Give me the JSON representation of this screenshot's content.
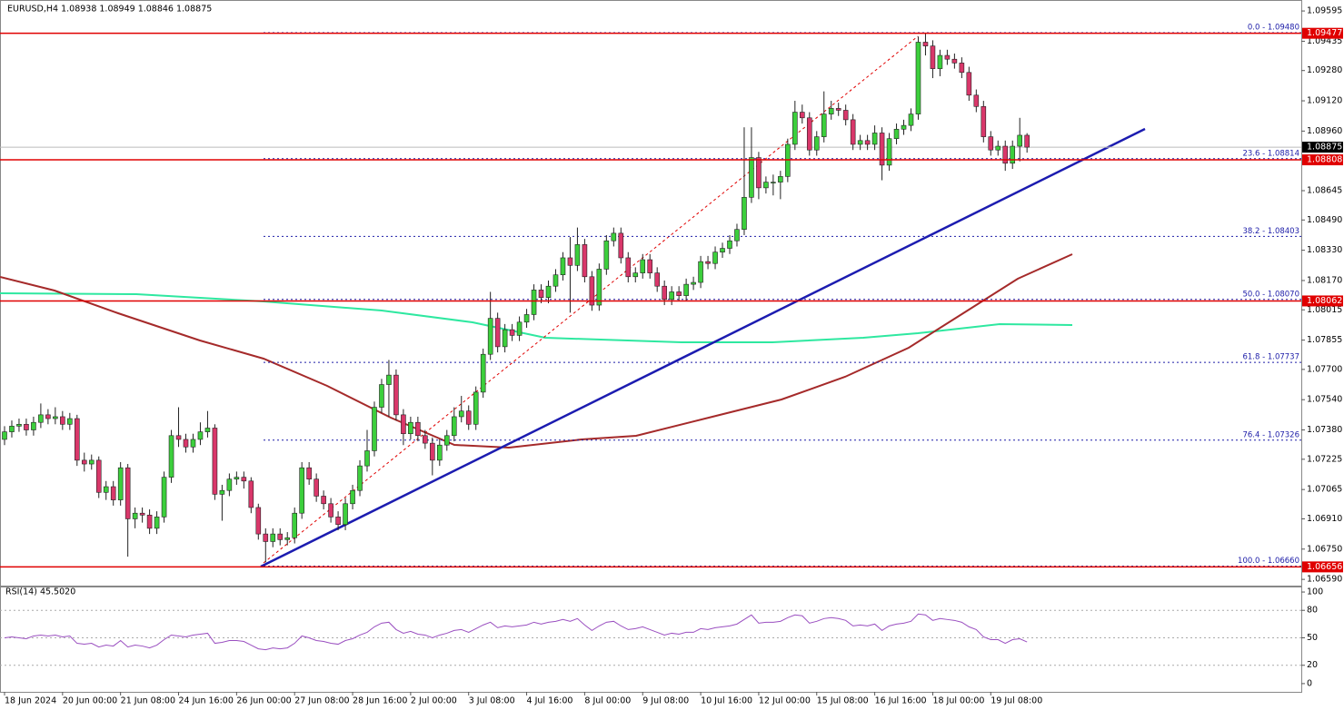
{
  "chart_data": {
    "type": "candlestick",
    "title": "EURUSD,H4  1.08938 1.08949 1.08846 1.08875",
    "up_color": "#3ccf3c",
    "down_color": "#d9376a",
    "ylim": [
      1.06557,
      1.09653
    ],
    "yticks": [
      1.09595,
      1.09435,
      {
        "value": 1.0928,
        "label": "1.09280"
      },
      {
        "value": 1.0912,
        "label": "1.09120"
      },
      {
        "value": 1.0896,
        "label": "1.08960"
      },
      1.08645,
      {
        "value": 1.0849,
        "label": "1.08490"
      },
      {
        "value": 1.0833,
        "label": "1.08330"
      },
      {
        "value": 1.0817,
        "label": "1.08170"
      },
      1.08015,
      1.07855,
      {
        "value": 1.077,
        "label": "1.07700"
      },
      {
        "value": 1.0754,
        "label": "1.07540"
      },
      {
        "value": 1.0738,
        "label": "1.07380"
      },
      1.07225,
      1.07065,
      {
        "value": 1.0691,
        "label": "1.06910"
      },
      {
        "value": 1.0675,
        "label": "1.06750"
      },
      {
        "value": 1.0659,
        "label": "1.06590"
      }
    ],
    "grid": false,
    "levels": [
      1.09477,
      1.08808,
      1.08062,
      1.06656
    ],
    "level_color": "#e00000",
    "fib_color": "#1c1ca8",
    "fib_levels": [
      {
        "label": "0.0 - 1.09480",
        "value": 1.0948
      },
      {
        "label": "23.6 - 1.08814",
        "value": 1.08814
      },
      {
        "label": "38.2 - 1.08403",
        "value": 1.08403
      },
      {
        "label": "50.0 - 1.08070",
        "value": 1.0807
      },
      {
        "label": "61.8 - 1.07737",
        "value": 1.07737
      },
      {
        "label": "76.4 - 1.07326",
        "value": 1.07326
      },
      {
        "label": "100.0 - 1.06660",
        "value": 1.0666
      }
    ],
    "categories": [
      "18 Jun 2024",
      null,
      null,
      null,
      null,
      null,
      null,
      null,
      "20 Jun 00:00",
      null,
      null,
      null,
      null,
      null,
      null,
      null,
      "21 Jun 08:00",
      null,
      null,
      null,
      null,
      null,
      null,
      null,
      "24 Jun 16:00",
      null,
      null,
      null,
      null,
      null,
      null,
      null,
      "26 Jun 00:00",
      null,
      null,
      null,
      null,
      null,
      null,
      null,
      "27 Jun 08:00",
      null,
      null,
      null,
      null,
      null,
      null,
      null,
      "28 Jun 16:00",
      null,
      null,
      null,
      null,
      null,
      null,
      null,
      "2 Jul 00:00",
      null,
      null,
      null,
      null,
      null,
      null,
      null,
      "3 Jul 08:00",
      null,
      null,
      null,
      null,
      null,
      null,
      null,
      "4 Jul 16:00",
      null,
      null,
      null,
      null,
      null,
      null,
      null,
      "8 Jul 00:00",
      null,
      null,
      null,
      null,
      null,
      null,
      null,
      "9 Jul 08:00",
      null,
      null,
      null,
      null,
      null,
      null,
      null,
      "10 Jul 16:00",
      null,
      null,
      null,
      null,
      null,
      null,
      null,
      "12 Jul 00:00",
      null,
      null,
      null,
      null,
      null,
      null,
      null,
      "15 Jul 08:00",
      null,
      null,
      null,
      null,
      null,
      null,
      null,
      "16 Jul 16:00",
      null,
      null,
      null,
      null,
      null,
      null,
      null,
      "18 Jul 00:00",
      null,
      null,
      null,
      null,
      null,
      null,
      null,
      "19 Jul 08:00",
      null,
      null,
      null,
      null,
      null
    ],
    "candles": [
      [
        1.0733,
        1.074,
        1.073,
        1.0737
      ],
      [
        1.0737,
        1.0743,
        1.0734,
        1.074
      ],
      [
        1.074,
        1.0744,
        1.0737,
        1.0741
      ],
      [
        1.0741,
        1.0744,
        1.0735,
        1.0738
      ],
      [
        1.0738,
        1.0745,
        1.0735,
        1.0742
      ],
      [
        1.0742,
        1.0752,
        1.0739,
        1.0746
      ],
      [
        1.0746,
        1.0749,
        1.0741,
        1.0744
      ],
      [
        1.0744,
        1.075,
        1.0741,
        1.0745
      ],
      [
        1.0745,
        1.0748,
        1.0738,
        1.0741
      ],
      [
        1.0741,
        1.0747,
        1.0738,
        1.0744
      ],
      [
        1.0744,
        1.0746,
        1.0719,
        1.0722
      ],
      [
        1.0722,
        1.0726,
        1.0716,
        1.072
      ],
      [
        1.072,
        1.0725,
        1.0717,
        1.0722
      ],
      [
        1.0722,
        1.0724,
        1.0702,
        1.0705
      ],
      [
        1.0705,
        1.0711,
        1.0701,
        1.0708
      ],
      [
        1.0708,
        1.0711,
        1.0698,
        1.0701
      ],
      [
        1.0701,
        1.0721,
        1.0698,
        1.0718
      ],
      [
        1.0718,
        1.072,
        1.0671,
        1.0691
      ],
      [
        1.0691,
        1.0697,
        1.0686,
        1.0694
      ],
      [
        1.0694,
        1.0697,
        1.0689,
        1.0693
      ],
      [
        1.0693,
        1.0696,
        1.0683,
        1.0686
      ],
      [
        1.0686,
        1.0695,
        1.0683,
        1.0692
      ],
      [
        1.0692,
        1.0716,
        1.0689,
        1.0713
      ],
      [
        1.0713,
        1.0738,
        1.071,
        1.0735
      ],
      [
        1.0735,
        1.075,
        1.0729,
        1.0733
      ],
      [
        1.0733,
        1.0736,
        1.0726,
        1.0729
      ],
      [
        1.0729,
        1.0736,
        1.0726,
        1.0733
      ],
      [
        1.0733,
        1.0742,
        1.073,
        1.0737
      ],
      [
        1.0737,
        1.0748,
        1.0734,
        1.0739
      ],
      [
        1.0739,
        1.0741,
        1.0701,
        1.0704
      ],
      [
        1.0704,
        1.0709,
        1.069,
        1.0706
      ],
      [
        1.0706,
        1.0715,
        1.0703,
        1.0712
      ],
      [
        1.0712,
        1.0716,
        1.0709,
        1.0713
      ],
      [
        1.0713,
        1.0716,
        1.0707,
        1.0711
      ],
      [
        1.0711,
        1.0713,
        1.0694,
        1.0697
      ],
      [
        1.0697,
        1.0699,
        1.068,
        1.0683
      ],
      [
        1.0683,
        1.0686,
        1.0668,
        1.0679
      ],
      [
        1.0679,
        1.0686,
        1.0676,
        1.0683
      ],
      [
        1.0683,
        1.0686,
        1.0677,
        1.068
      ],
      [
        1.068,
        1.0684,
        1.0677,
        1.0681
      ],
      [
        1.0681,
        1.0697,
        1.0678,
        1.0694
      ],
      [
        1.0694,
        1.0721,
        1.0691,
        1.0718
      ],
      [
        1.0718,
        1.0721,
        1.0709,
        1.0712
      ],
      [
        1.0712,
        1.0715,
        1.07,
        1.0703
      ],
      [
        1.0703,
        1.0706,
        1.0696,
        1.0699
      ],
      [
        1.0699,
        1.0702,
        1.0689,
        1.0692
      ],
      [
        1.0692,
        1.0695,
        1.0685,
        1.0688
      ],
      [
        1.0688,
        1.0702,
        1.0685,
        1.0699
      ],
      [
        1.0699,
        1.0709,
        1.0696,
        1.0706
      ],
      [
        1.0706,
        1.0722,
        1.0703,
        1.0719
      ],
      [
        1.0719,
        1.0738,
        1.0716,
        1.0727
      ],
      [
        1.0727,
        1.0753,
        1.0724,
        1.075
      ],
      [
        1.075,
        1.0765,
        1.0747,
        1.0762
      ],
      [
        1.0762,
        1.0775,
        1.0745,
        1.0767
      ],
      [
        1.0767,
        1.077,
        1.0743,
        1.0746
      ],
      [
        1.0746,
        1.0749,
        1.073,
        1.0736
      ],
      [
        1.0736,
        1.0745,
        1.0733,
        1.0742
      ],
      [
        1.0742,
        1.0745,
        1.0732,
        1.0735
      ],
      [
        1.0735,
        1.0738,
        1.0728,
        1.0731
      ],
      [
        1.0731,
        1.0734,
        1.0714,
        1.0722
      ],
      [
        1.0722,
        1.0733,
        1.0719,
        1.073
      ],
      [
        1.073,
        1.0738,
        1.0727,
        1.0735
      ],
      [
        1.0735,
        1.075,
        1.0732,
        1.0745
      ],
      [
        1.0745,
        1.0756,
        1.0742,
        1.0748
      ],
      [
        1.0748,
        1.0751,
        1.0738,
        1.0741
      ],
      [
        1.0741,
        1.0761,
        1.0738,
        1.0758
      ],
      [
        1.0758,
        1.0781,
        1.0755,
        1.0778
      ],
      [
        1.0778,
        1.0811,
        1.0775,
        1.0797
      ],
      [
        1.0797,
        1.08,
        1.0779,
        1.0782
      ],
      [
        1.0782,
        1.0794,
        1.0779,
        1.0791
      ],
      [
        1.0791,
        1.0794,
        1.0785,
        1.0788
      ],
      [
        1.0788,
        1.0798,
        1.0785,
        1.0795
      ],
      [
        1.0795,
        1.0802,
        1.0792,
        1.0799
      ],
      [
        1.0799,
        1.0815,
        1.0796,
        1.0812
      ],
      [
        1.0812,
        1.0815,
        1.0805,
        1.0808
      ],
      [
        1.0808,
        1.0817,
        1.0805,
        1.0814
      ],
      [
        1.0814,
        1.0823,
        1.0811,
        1.082
      ],
      [
        1.082,
        1.0832,
        1.0817,
        1.0829
      ],
      [
        1.0829,
        1.084,
        1.08,
        1.0825
      ],
      [
        1.0825,
        1.0845,
        1.0822,
        1.0836
      ],
      [
        1.0836,
        1.0839,
        1.0816,
        1.0819
      ],
      [
        1.0819,
        1.0822,
        1.0801,
        1.0804
      ],
      [
        1.0804,
        1.0826,
        1.0801,
        1.0823
      ],
      [
        1.0823,
        1.0841,
        1.082,
        1.0838
      ],
      [
        1.0838,
        1.0845,
        1.0835,
        1.0842
      ],
      [
        1.0842,
        1.0845,
        1.0826,
        1.0829
      ],
      [
        1.0829,
        1.0832,
        1.0816,
        1.0819
      ],
      [
        1.0819,
        1.0824,
        1.0816,
        1.0821
      ],
      [
        1.0821,
        1.0831,
        1.0818,
        1.0828
      ],
      [
        1.0828,
        1.0831,
        1.0818,
        1.0821
      ],
      [
        1.0821,
        1.0824,
        1.0811,
        1.0814
      ],
      [
        1.0814,
        1.0817,
        1.0804,
        1.0807
      ],
      [
        1.0807,
        1.0814,
        1.0804,
        1.0811
      ],
      [
        1.0811,
        1.0814,
        1.0806,
        1.0809
      ],
      [
        1.0809,
        1.0818,
        1.0806,
        1.0815
      ],
      [
        1.0815,
        1.0819,
        1.0812,
        1.0816
      ],
      [
        1.0816,
        1.083,
        1.0813,
        1.0827
      ],
      [
        1.0827,
        1.083,
        1.0823,
        1.0826
      ],
      [
        1.0826,
        1.0835,
        1.0823,
        1.0832
      ],
      [
        1.0832,
        1.0837,
        1.0829,
        1.0834
      ],
      [
        1.0834,
        1.0841,
        1.0831,
        1.0838
      ],
      [
        1.0838,
        1.0847,
        1.0835,
        1.0844
      ],
      [
        1.0844,
        1.0898,
        1.0841,
        1.0861
      ],
      [
        1.0861,
        1.0898,
        1.0858,
        1.0882
      ],
      [
        1.0882,
        1.0885,
        1.086,
        1.0866
      ],
      [
        1.0866,
        1.0872,
        1.0863,
        1.0869
      ],
      [
        1.0869,
        1.0873,
        1.0862,
        1.0869
      ],
      [
        1.0869,
        1.0875,
        1.086,
        1.0872
      ],
      [
        1.0872,
        1.0892,
        1.0869,
        1.0889
      ],
      [
        1.0889,
        1.0912,
        1.0886,
        1.0906
      ],
      [
        1.0906,
        1.091,
        1.09,
        1.0903
      ],
      [
        1.0903,
        1.0906,
        1.0883,
        1.0886
      ],
      [
        1.0886,
        1.0896,
        1.0883,
        1.0893
      ],
      [
        1.0893,
        1.0917,
        1.089,
        1.0905
      ],
      [
        1.0905,
        1.0912,
        1.0902,
        1.0908
      ],
      [
        1.0908,
        1.0911,
        1.0904,
        1.0907
      ],
      [
        1.0907,
        1.091,
        1.0899,
        1.0902
      ],
      [
        1.0902,
        1.0905,
        1.0886,
        1.0889
      ],
      [
        1.0889,
        1.0894,
        1.0886,
        1.0891
      ],
      [
        1.0891,
        1.0894,
        1.0886,
        1.0889
      ],
      [
        1.0889,
        1.0899,
        1.0886,
        1.0895
      ],
      [
        1.0895,
        1.0898,
        1.087,
        1.0878
      ],
      [
        1.0878,
        1.0895,
        1.0875,
        1.0892
      ],
      [
        1.0892,
        1.09,
        1.0889,
        1.0897
      ],
      [
        1.0897,
        1.0902,
        1.0894,
        1.0899
      ],
      [
        1.0899,
        1.0908,
        1.0896,
        1.0905
      ],
      [
        1.0905,
        1.0946,
        1.0902,
        1.0943
      ],
      [
        1.0943,
        1.0948,
        1.0936,
        1.0941
      ],
      [
        1.0941,
        1.0944,
        1.0924,
        1.0929
      ],
      [
        1.0929,
        1.0939,
        1.0925,
        1.0936
      ],
      [
        1.0936,
        1.0939,
        1.0931,
        1.0934
      ],
      [
        1.0934,
        1.0937,
        1.0929,
        1.0932
      ],
      [
        1.0932,
        1.0935,
        1.0924,
        1.0927
      ],
      [
        1.0927,
        1.093,
        1.0912,
        1.0915
      ],
      [
        1.0915,
        1.0918,
        1.0906,
        1.0909
      ],
      [
        1.0909,
        1.0912,
        1.089,
        1.0893
      ],
      [
        1.0893,
        1.0896,
        1.0883,
        1.0886
      ],
      [
        1.0886,
        1.0891,
        1.0883,
        1.0888
      ],
      [
        1.0888,
        1.0891,
        1.0875,
        1.0879
      ],
      [
        1.0879,
        1.0891,
        1.0876,
        1.0888
      ],
      [
        1.0888,
        1.0903,
        1.088,
        1.08938
      ],
      [
        1.08938,
        1.08949,
        1.08846,
        1.08875
      ]
    ],
    "rsi": {
      "label": "RSI(14) 45.5020",
      "color": "#9a4fc0",
      "ylim": [
        -9,
        106
      ],
      "yticks": [
        0,
        20,
        50,
        80,
        100
      ],
      "levels": [
        20,
        50,
        80
      ],
      "values": [
        50,
        51,
        50,
        49,
        52,
        53,
        52,
        53,
        51,
        52,
        44,
        43,
        44,
        40,
        42,
        41,
        47,
        40,
        42,
        41,
        39,
        42,
        48,
        53,
        52,
        51,
        53,
        54,
        55,
        44,
        45,
        47,
        47,
        46,
        42,
        38,
        37,
        39,
        38,
        39,
        44,
        52,
        50,
        47,
        46,
        44,
        43,
        47,
        49,
        53,
        56,
        62,
        66,
        67,
        59,
        55,
        57,
        54,
        53,
        50,
        53,
        55,
        58,
        59,
        56,
        60,
        64,
        67,
        61,
        63,
        62,
        63,
        64,
        67,
        65,
        67,
        68,
        70,
        68,
        71,
        64,
        58,
        63,
        67,
        68,
        63,
        59,
        60,
        62,
        59,
        56,
        53,
        55,
        54,
        56,
        56,
        60,
        59,
        61,
        62,
        63,
        65,
        70,
        75,
        66,
        67,
        67,
        68,
        72,
        75,
        74,
        66,
        68,
        71,
        72,
        71,
        69,
        63,
        64,
        63,
        65,
        58,
        63,
        65,
        66,
        68,
        76,
        75,
        69,
        71,
        70,
        69,
        67,
        62,
        59,
        51,
        48,
        48,
        44,
        48,
        49,
        45.502
      ]
    }
  }
}
